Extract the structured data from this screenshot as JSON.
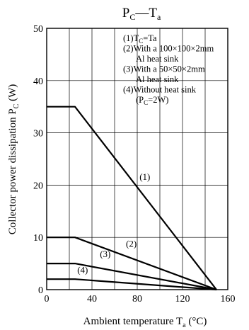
{
  "chart_data": {
    "type": "line",
    "title_main": "P",
    "title_sub": "C",
    "title_dash": "—",
    "title_main2": "T",
    "title_sub2": "a",
    "xlabel_main": "Ambient temperature  T",
    "xlabel_sub": "a",
    "xlabel_unit": " (°C)",
    "ylabel_main": "Collector power dissipation  P",
    "ylabel_sub": "C",
    "ylabel_unit": " (W)",
    "xlim": [
      0,
      160
    ],
    "ylim": [
      0,
      50
    ],
    "xticks": [
      0,
      40,
      80,
      120,
      160
    ],
    "yticks": [
      0,
      10,
      20,
      30,
      40,
      50
    ],
    "xgrid": [
      0,
      20,
      40,
      60,
      80,
      100,
      120,
      140,
      160
    ],
    "ygrid": [
      0,
      10,
      20,
      30,
      40,
      50
    ],
    "grid": true,
    "series": [
      {
        "name": "(1)",
        "points": [
          [
            0,
            35
          ],
          [
            25,
            35
          ],
          [
            150,
            0
          ]
        ],
        "label_at": [
          82,
          21
        ]
      },
      {
        "name": "(2)",
        "points": [
          [
            0,
            10
          ],
          [
            25,
            10
          ],
          [
            150,
            0
          ]
        ],
        "label_at": [
          70,
          8.2
        ]
      },
      {
        "name": "(3)",
        "points": [
          [
            0,
            5
          ],
          [
            25,
            5
          ],
          [
            150,
            0
          ]
        ],
        "label_at": [
          47,
          6.2
        ]
      },
      {
        "name": "(4)",
        "points": [
          [
            0,
            2
          ],
          [
            25,
            2
          ],
          [
            150,
            0
          ]
        ],
        "label_at": [
          27,
          3.2
        ]
      }
    ],
    "legend": {
      "placement": "top-right",
      "entries": [
        {
          "pre": "(1)T",
          "sub": "C",
          "post": "=Ta"
        },
        {
          "pre": "(2)With a 100×100×2mm",
          "sub": "",
          "post": ""
        },
        {
          "pre": "Al heat sink",
          "sub": "",
          "post": "",
          "indent": true
        },
        {
          "pre": "(3)With a 50×50×2mm",
          "sub": "",
          "post": ""
        },
        {
          "pre": "Al heat sink",
          "sub": "",
          "post": "",
          "indent": true
        },
        {
          "pre": "(4)Without heat sink",
          "sub": "",
          "post": ""
        },
        {
          "pre": "(P",
          "sub": "C",
          "post": "=2W)",
          "indent": true
        }
      ]
    }
  }
}
